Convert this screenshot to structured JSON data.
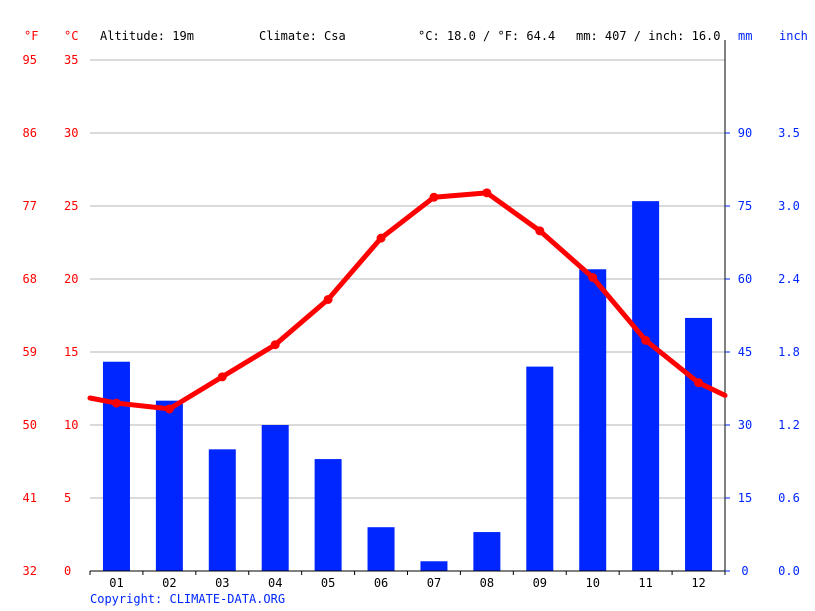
{
  "header": {
    "f_unit": "°F",
    "c_unit": "°C",
    "altitude": "Altitude: 19m",
    "climate": "Climate: Csa",
    "temp_avg": "°C: 18.0 / °F: 64.4",
    "precip_total": "mm: 407 / inch: 16.0",
    "mm_unit": "mm",
    "inch_unit": "inch"
  },
  "footer": {
    "copyright": "Copyright: CLIMATE-DATA.ORG"
  },
  "colors": {
    "temp": "#ff0000",
    "precip": "#0026ff",
    "grid": "#b4b4b4",
    "axis_text_temp": "#ff0000",
    "axis_text_precip": "#0026ff"
  },
  "chart_data": {
    "type": "bar",
    "categories": [
      "01",
      "02",
      "03",
      "04",
      "05",
      "06",
      "07",
      "08",
      "09",
      "10",
      "11",
      "12"
    ],
    "series": [
      {
        "kind": "bar",
        "axis": "right",
        "unit": "mm",
        "values": [
          43,
          35,
          25,
          30,
          23,
          9,
          2,
          8,
          42,
          62,
          76,
          52
        ]
      },
      {
        "kind": "line",
        "axis": "left",
        "unit": "°C",
        "values": [
          11.5,
          11.1,
          13.3,
          15.5,
          18.6,
          22.8,
          25.6,
          25.9,
          23.3,
          20.1,
          15.8,
          12.9
        ]
      }
    ],
    "y_left": {
      "min": 0,
      "max": 35,
      "ticks_c": [
        "0",
        "5",
        "10",
        "15",
        "20",
        "25",
        "30",
        "35"
      ],
      "ticks_f": [
        "32",
        "41",
        "50",
        "59",
        "68",
        "77",
        "86",
        "95"
      ]
    },
    "y_right": {
      "min": 0,
      "max": 105,
      "ticks_mm": [
        "0",
        "15",
        "30",
        "45",
        "60",
        "75",
        "90"
      ],
      "ticks_inch": [
        "0.0",
        "0.6",
        "1.2",
        "1.8",
        "2.4",
        "3.0",
        "3.5"
      ]
    },
    "grid": true
  }
}
